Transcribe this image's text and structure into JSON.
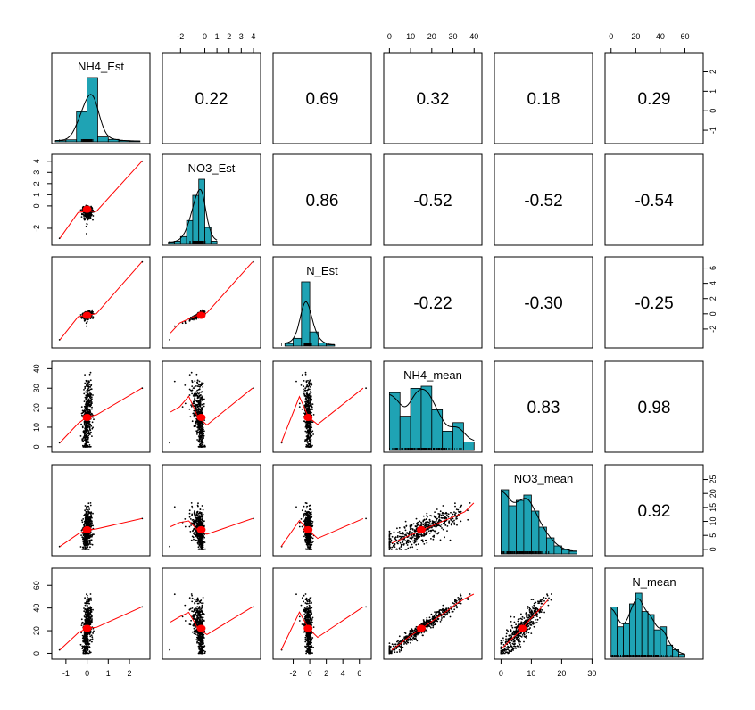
{
  "chart_data": {
    "type": "scatter",
    "variables": [
      "NH4_Est",
      "NO3_Est",
      "N_Est",
      "NH4_mean",
      "NO3_mean",
      "N_mean"
    ],
    "correlations": [
      [
        "",
        "0.22",
        "0.69",
        "0.32",
        "0.18",
        "0.29"
      ],
      [
        "",
        "",
        "0.86",
        "-0.52",
        "-0.52",
        "-0.54"
      ],
      [
        "",
        "",
        "",
        "-0.22",
        "-0.30",
        "-0.25"
      ],
      [
        "",
        "",
        "",
        "",
        "0.83",
        "0.98"
      ],
      [
        "",
        "",
        "",
        "",
        "",
        "0.92"
      ],
      [
        "",
        "",
        "",
        "",
        "",
        ""
      ]
    ],
    "ranges": [
      [
        -1.5,
        2.8
      ],
      [
        -3.2,
        4.3
      ],
      [
        -4.0,
        7.0
      ],
      [
        -1,
        42
      ],
      [
        -1,
        29
      ],
      [
        -2,
        72
      ]
    ],
    "centers": [
      0.0,
      -0.3,
      -0.2,
      15,
      7,
      22
    ],
    "ticks": [
      [
        -1,
        0,
        1,
        2
      ],
      [
        -2,
        0,
        1,
        2,
        3,
        4
      ],
      [
        -2,
        0,
        2,
        4,
        6
      ],
      [
        0,
        10,
        20,
        30,
        40
      ],
      [
        0,
        5,
        10,
        15,
        20,
        25
      ],
      [
        0,
        20,
        40,
        60
      ]
    ],
    "axes": {
      "top": [
        {
          "col": 1,
          "ticks": [
            "-2",
            "0",
            "1",
            "2",
            "3",
            "4"
          ]
        },
        {
          "col": 3,
          "ticks": [
            "0",
            "10",
            "20",
            "30",
            "40"
          ]
        },
        {
          "col": 5,
          "ticks": [
            "0",
            "20",
            "40",
            "60"
          ]
        }
      ],
      "bottom": [
        {
          "col": 0,
          "ticks": [
            "-1",
            "0",
            "1",
            "2"
          ]
        },
        {
          "col": 2,
          "ticks": [
            "-2",
            "0",
            "2",
            "4",
            "6"
          ]
        },
        {
          "col": 4,
          "ticks": [
            "0",
            "10",
            "20",
            "30"
          ]
        }
      ],
      "right": [
        {
          "row": 0,
          "ticks": [
            "-1",
            "0",
            "1",
            "2"
          ]
        },
        {
          "row": 2,
          "ticks": [
            "-2",
            "0",
            "2",
            "4",
            "6"
          ]
        },
        {
          "row": 4,
          "ticks": [
            "0",
            "5",
            "10",
            "15",
            "20",
            "25"
          ]
        }
      ],
      "left": [
        {
          "row": 1,
          "ticks": [
            "-2",
            "0",
            "1",
            "2",
            "3",
            "4"
          ]
        },
        {
          "row": 3,
          "ticks": [
            "0",
            "10",
            "20",
            "30",
            "40"
          ]
        },
        {
          "row": 5,
          "ticks": [
            "0",
            "20",
            "40",
            "60"
          ]
        }
      ]
    },
    "axis_values": {
      "top": [
        [
          -2,
          0,
          1,
          2,
          3,
          4
        ],
        [
          0,
          10,
          20,
          30,
          40
        ],
        [
          0,
          20,
          40,
          60
        ]
      ],
      "bottom": [
        [
          -1,
          0,
          1,
          2
        ],
        [
          -2,
          0,
          2,
          4,
          6
        ],
        [
          0,
          10,
          20,
          30
        ]
      ],
      "right": [
        [
          -1,
          0,
          1,
          2
        ],
        [
          -2,
          0,
          2,
          4,
          6
        ],
        [
          0,
          5,
          10,
          15,
          20,
          25
        ]
      ],
      "left": [
        [
          -2,
          0,
          1,
          2,
          3,
          4
        ],
        [
          0,
          10,
          20,
          30,
          40
        ],
        [
          0,
          20,
          40,
          60
        ]
      ]
    },
    "histograms": [
      {
        "var": 0,
        "bins": [
          -1.5,
          -1.0,
          -0.5,
          0.0,
          0.5,
          1.0,
          1.5,
          2.0,
          2.5
        ],
        "densities": [
          0.03,
          0.05,
          0.75,
          1.6,
          0.12,
          0.06,
          0.03,
          0.02
        ]
      },
      {
        "var": 1,
        "bins": [
          -3,
          -2.5,
          -2,
          -1.5,
          -1,
          -0.5,
          0,
          0.5,
          1
        ],
        "densities": [
          0.03,
          0.05,
          0.15,
          0.5,
          1.05,
          1.4,
          0.35,
          0.05
        ]
      },
      {
        "var": 2,
        "bins": [
          -3,
          -2,
          -1,
          0,
          1,
          2,
          3
        ],
        "densities": [
          0.04,
          0.12,
          1.0,
          0.22,
          0.05,
          0.02
        ]
      },
      {
        "var": 3,
        "bins": [
          0,
          5,
          10,
          15,
          20,
          25,
          30,
          35,
          40
        ],
        "densities": [
          0.054,
          0.032,
          0.058,
          0.06,
          0.038,
          0.018,
          0.026,
          0.008
        ]
      },
      {
        "var": 4,
        "bins": [
          0,
          2.5,
          5,
          7.5,
          10,
          12.5,
          15,
          17.5,
          20,
          22.5,
          25
        ],
        "densities": [
          0.12,
          0.09,
          0.1,
          0.11,
          0.08,
          0.05,
          0.03,
          0.015,
          0.008,
          0.005
        ]
      },
      {
        "var": 5,
        "bins": [
          0,
          5,
          10,
          15,
          20,
          25,
          30,
          35,
          40,
          45,
          50,
          55,
          60
        ],
        "densities": [
          0.033,
          0.02,
          0.022,
          0.035,
          0.042,
          0.03,
          0.028,
          0.018,
          0.02,
          0.008,
          0.005,
          0.002
        ]
      }
    ],
    "colors": {
      "hist_fill": "#1fa3b4",
      "points": "#000000",
      "loess": "#ff0000",
      "ellipse": "#ff0000",
      "density": "#000000"
    }
  }
}
